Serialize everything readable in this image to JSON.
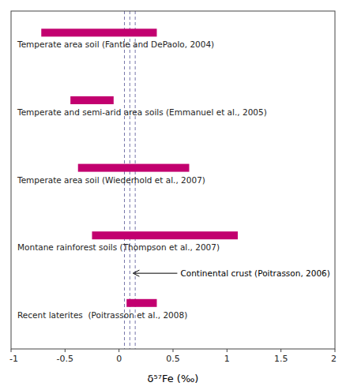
{
  "chart_data": {
    "type": "bar",
    "orientation": "horizontal",
    "categories": [
      "Temperate area soil (Fantle and DePaolo, 2004)",
      "Temperate and semi-arid area soils (Emmanuel et al., 2005)",
      "Temperate area soil (Wiederhold et al., 2007)",
      "Montane rainforest soils (Thompson et al., 2007)",
      "Recent laterites  (Poitrasson et al., 2008)"
    ],
    "values": [
      [
        -0.72,
        0.35
      ],
      [
        -0.45,
        -0.05
      ],
      [
        -0.38,
        0.65
      ],
      [
        -0.25,
        1.1
      ],
      [
        0.07,
        0.35
      ]
    ],
    "color": "#C2006F",
    "vlines": [
      0.05,
      0.1,
      0.15
    ],
    "vline_color": "#7777AA",
    "annotations": [
      {
        "text": "Continental crust (Poitrasson, 2006)",
        "x": 0.13
      }
    ],
    "xlabel": "δ⁵⁷Fe (‰)",
    "xlim": [
      -1,
      2
    ],
    "xticks": [
      -1,
      -0.5,
      0,
      0.5,
      1,
      1.5,
      2
    ]
  }
}
